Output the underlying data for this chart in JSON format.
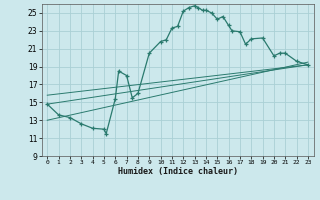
{
  "xlabel": "Humidex (Indice chaleur)",
  "bg_color": "#cce8ec",
  "grid_color": "#aad0d5",
  "line_color": "#2a7a6e",
  "xlim": [
    -0.5,
    23.5
  ],
  "ylim": [
    9,
    26
  ],
  "xticks": [
    0,
    1,
    2,
    3,
    4,
    5,
    6,
    7,
    8,
    9,
    10,
    11,
    12,
    13,
    14,
    15,
    16,
    17,
    18,
    19,
    20,
    21,
    22,
    23
  ],
  "yticks": [
    9,
    11,
    13,
    15,
    17,
    19,
    21,
    23,
    25
  ],
  "curve_x": [
    0,
    1,
    2,
    3,
    4,
    5,
    5.2,
    6,
    6.3,
    7,
    7.5,
    8,
    9,
    10,
    10.5,
    11,
    11.5,
    12,
    12.5,
    13,
    13.3,
    13.7,
    14,
    14.5,
    15,
    15.5,
    16,
    16.3,
    17,
    17.5,
    18,
    19,
    20,
    20.5,
    21,
    22,
    23
  ],
  "curve_y": [
    14.8,
    13.6,
    13.3,
    12.6,
    12.1,
    12.0,
    11.5,
    15.4,
    18.5,
    18.0,
    15.5,
    16.0,
    20.5,
    21.8,
    22.0,
    23.3,
    23.5,
    25.2,
    25.6,
    25.8,
    25.6,
    25.3,
    25.3,
    25.0,
    24.3,
    24.6,
    23.6,
    23.0,
    22.9,
    21.5,
    22.1,
    22.2,
    20.2,
    20.5,
    20.5,
    19.6,
    19.2
  ],
  "line1_x": [
    0,
    23
  ],
  "line1_y": [
    15.8,
    19.2
  ],
  "line2_x": [
    0,
    23
  ],
  "line2_y": [
    14.8,
    19.2
  ],
  "line3_x": [
    0,
    23
  ],
  "line3_y": [
    13.0,
    19.5
  ]
}
